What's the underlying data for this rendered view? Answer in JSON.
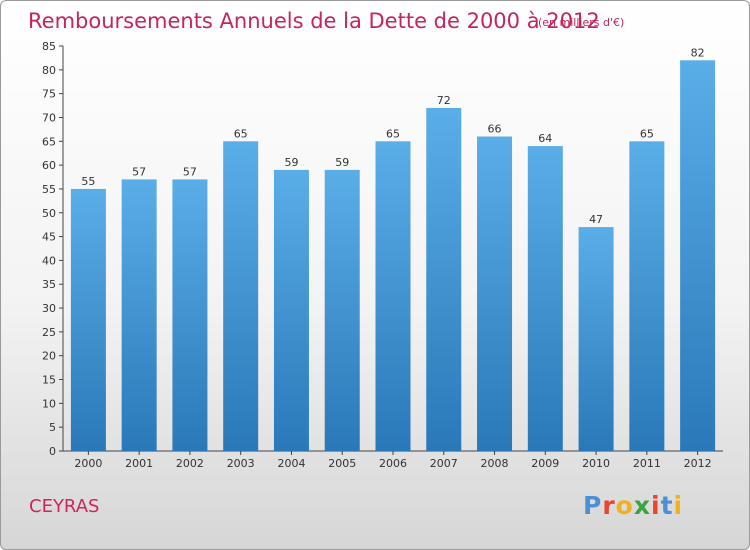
{
  "header": {
    "title": "Remboursements Annuels de la Dette de 2000 à 2012",
    "unit": "(en milliers d'€)"
  },
  "footer": {
    "city": "CEYRAS",
    "logo": "Proxiti"
  },
  "colors": {
    "title": "#c4245f",
    "bar_top": "#5aaee8",
    "bar_bottom": "#2a78b8"
  },
  "chart_data": {
    "type": "bar",
    "title": "Remboursements Annuels de la Dette de 2000 à 2012",
    "subtitle": "(en milliers d'€)",
    "categories": [
      "2000",
      "2001",
      "2002",
      "2003",
      "2004",
      "2005",
      "2006",
      "2007",
      "2008",
      "2009",
      "2010",
      "2011",
      "2012"
    ],
    "values": [
      55,
      57,
      57,
      65,
      59,
      59,
      65,
      72,
      66,
      64,
      47,
      65,
      82
    ],
    "ylim": [
      0,
      85
    ],
    "yticks": [
      0,
      5,
      10,
      15,
      20,
      25,
      30,
      35,
      40,
      45,
      50,
      55,
      60,
      65,
      70,
      75,
      80,
      85
    ],
    "grid": false,
    "data_labels": true
  }
}
